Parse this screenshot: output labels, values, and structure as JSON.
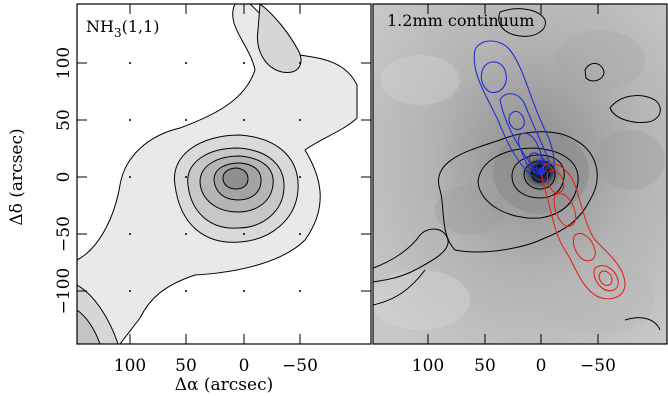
{
  "figure": {
    "left_panel": {
      "label_main": "NH",
      "label_sub": "3",
      "label_rest": "(1,1)",
      "fill_color": "#e9e9e9"
    },
    "right_panel": {
      "label": "1.2mm continuum",
      "blue_color": "#1f2fd6",
      "red_color": "#e0241c"
    },
    "x_axis_label_text": "Δα (arcsec)",
    "y_axis_label_text": "Δδ (arcsec)",
    "x_ticks": [
      "100",
      "50",
      "0",
      "−50"
    ],
    "y_ticks": [
      "100",
      "50",
      "0",
      "−50",
      "−100"
    ]
  },
  "chart_data": [
    {
      "type": "heatmap",
      "title": "NH3(1,1)",
      "xlabel": "Δα (arcsec)",
      "ylabel": "Δδ (arcsec)",
      "xlim": [
        120,
        -75
      ],
      "ylim": [
        -120,
        120
      ],
      "peak": {
        "x": 5,
        "y": -2
      }
    },
    {
      "type": "heatmap",
      "title": "1.2mm continuum",
      "xlabel": "Δα (arcsec)",
      "ylabel": "",
      "xlim": [
        120,
        -75
      ],
      "ylim": [
        -120,
        120
      ],
      "peak": {
        "x": 0,
        "y": 2
      },
      "series": [
        {
          "name": "",
          "color": "blue",
          "extent": [
            [
              35,
              75
            ],
            [
              0,
              5
            ]
          ]
        },
        {
          "name": "",
          "color": "red",
          "extent": [
            [
              -5,
              0
            ],
            [
              -50,
              -85
            ]
          ]
        }
      ]
    }
  ]
}
